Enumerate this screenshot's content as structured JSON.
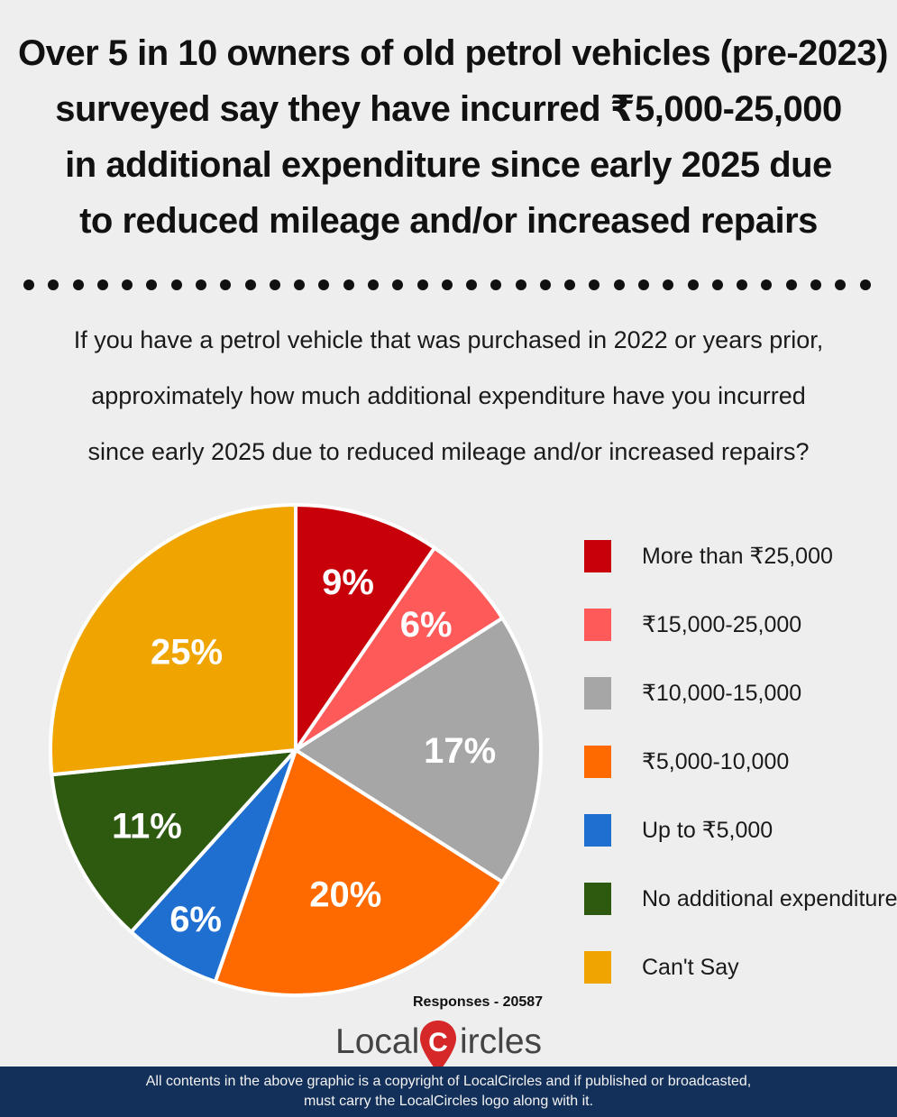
{
  "headline": [
    "Over 5 in 10 owners of old petrol vehicles (pre-2023)",
    "surveyed say they have incurred ₹5,000-25,000",
    "in additional expenditure since early 2025 due",
    "to reduced mileage and/or increased repairs"
  ],
  "question": [
    "If you have a petrol vehicle that was purchased in 2022 or years prior,",
    "approximately how much additional expenditure have you incurred",
    "since early 2025 due to reduced mileage and/or increased repairs?"
  ],
  "chart_data": {
    "type": "pie",
    "slices": [
      {
        "label": "More than ₹25,000",
        "value": 9,
        "display": "9%",
        "color": "#c8000a"
      },
      {
        "label": "₹15,000-25,000",
        "value": 6,
        "display": "6%",
        "color": "#ff5a5a"
      },
      {
        "label": "₹10,000-15,000",
        "value": 17,
        "display": "17%",
        "color": "#a6a6a6"
      },
      {
        "label": "₹5,000-10,000",
        "value": 20,
        "display": "20%",
        "color": "#ff6a00"
      },
      {
        "label": "Up to ₹5,000",
        "value": 6,
        "display": "6%",
        "color": "#1f6fd1"
      },
      {
        "label": "No additional expenditure",
        "value": 11,
        "display": "11%",
        "color": "#2e5a10"
      },
      {
        "label": "Can't Say",
        "value": 25,
        "display": "25%",
        "color": "#f0a400"
      }
    ],
    "legend_position": "right"
  },
  "responses": "Responses - 20587",
  "logo": {
    "part1": "Local",
    "letter": "C",
    "part2": "ircles",
    "pin_color": "#d62828"
  },
  "footer": [
    "All contents in the above graphic is a copyright of LocalCircles and if published or broadcasted,",
    "must carry the LocalCircles logo along with it."
  ]
}
